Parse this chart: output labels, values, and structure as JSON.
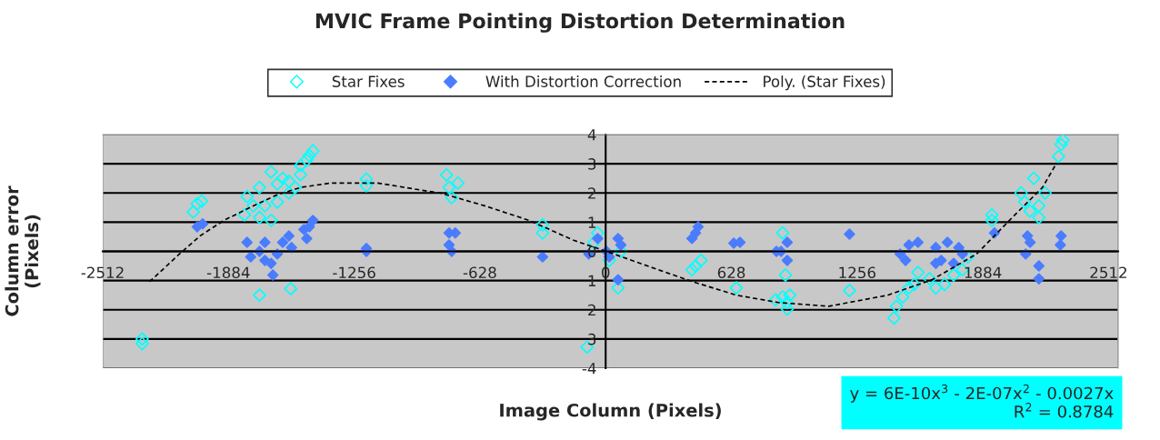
{
  "chart_data": {
    "type": "scatter",
    "title": "MVIC Frame Pointing Distortion Determination",
    "xlabel": "Image Column (Pixels)",
    "ylabel": "Column error\n(Pixels)",
    "xlim": [
      -2512,
      2560
    ],
    "ylim": [
      -4,
      4
    ],
    "xticks": [
      -2512,
      -1884,
      -1256,
      -628,
      0,
      628,
      1256,
      1884,
      2512
    ],
    "yticks": [
      {
        "value": -4,
        "label": "-4"
      },
      {
        "value": -3,
        "label": "3"
      },
      {
        "value": -2,
        "label": "2"
      },
      {
        "value": -1,
        "label": "1"
      },
      0,
      1,
      2,
      3,
      4
    ],
    "grid": "y",
    "legend": "top",
    "marker": "diamond",
    "series": [
      {
        "name": "Star Fixes",
        "color": "#00ffff",
        "x": [
          -2315,
          -2315,
          -2040,
          -2060,
          -2018,
          -1791,
          -1760,
          -1729,
          -1671,
          -1671,
          -1640,
          -1613,
          -1582,
          -1702,
          -1640,
          -1582,
          -1551,
          -1804,
          -1729,
          -1524,
          -1493,
          -1462,
          -1480,
          -1524,
          -1195,
          -1195,
          -1729,
          -1573,
          -795,
          -738,
          -782,
          -769,
          -315,
          -315,
          -40,
          -58,
          18,
          76,
          62,
          -93,
          449,
          476,
          431,
          653,
          849,
          884,
          898,
          907,
          884,
          920,
          907,
          1218,
          1440,
          1453,
          1484,
          1515,
          1560,
          1542,
          1618,
          1649,
          1693,
          1738,
          1782,
          1809,
          1929,
          1929,
          2075,
          2138,
          2093,
          2164,
          2195,
          2164,
          2120,
          2262,
          2275,
          2284
        ],
        "values": [
          -3.16,
          -3.0,
          1.63,
          1.35,
          1.72,
          1.88,
          1.56,
          2.19,
          2.72,
          1.06,
          2.31,
          2.5,
          2.4,
          1.56,
          1.69,
          2.0,
          2.19,
          1.25,
          1.16,
          2.94,
          3.13,
          3.44,
          3.28,
          2.63,
          2.47,
          2.25,
          -1.5,
          -1.28,
          2.62,
          2.34,
          2.19,
          1.84,
          0.91,
          0.63,
          0.63,
          0.31,
          -0.31,
          0.0,
          -1.25,
          -3.28,
          -0.5,
          -0.31,
          -0.63,
          -1.25,
          -1.66,
          0.63,
          -0.81,
          -1.75,
          -1.56,
          -1.5,
          -1.97,
          -1.34,
          -2.28,
          -1.88,
          -1.56,
          -1.25,
          -0.72,
          -1.13,
          -0.94,
          -1.25,
          -1.13,
          -0.81,
          -0.63,
          -0.19,
          1.25,
          1.06,
          2.0,
          2.5,
          1.69,
          1.56,
          2.0,
          1.16,
          1.38,
          3.25,
          3.66,
          3.81
        ]
      },
      {
        "name": "With Distortion Correction",
        "color": "#4a7cff",
        "x": [
          -2040,
          -2013,
          -1791,
          -1773,
          -1729,
          -1702,
          -1671,
          -1662,
          -1613,
          -1569,
          -1640,
          -1702,
          -1582,
          -1507,
          -1493,
          -1462,
          -1480,
          -1195,
          -1195,
          -782,
          -751,
          -769,
          -782,
          -315,
          -84,
          -40,
          4,
          62,
          76,
          18,
          62,
          449,
          462,
          431,
          640,
          671,
          853,
          876,
          907,
          907,
          1218,
          1471,
          1515,
          1560,
          1498,
          1649,
          1707,
          1764,
          1676,
          1738,
          1649,
          1782,
          1942,
          2107,
          2120,
          2098,
          2164,
          2164,
          2275,
          2271
        ],
        "values": [
          0.84,
          0.94,
          0.31,
          -0.19,
          0.0,
          0.31,
          -0.41,
          -0.81,
          0.31,
          0.13,
          -0.09,
          -0.31,
          0.53,
          0.75,
          0.44,
          1.06,
          0.84,
          0.0,
          0.1,
          0.63,
          0.63,
          0.0,
          0.22,
          -0.19,
          -0.09,
          0.44,
          0.0,
          0.44,
          0.22,
          -0.19,
          -0.97,
          0.63,
          0.84,
          0.44,
          0.28,
          0.31,
          0.0,
          0.0,
          0.31,
          -0.31,
          0.59,
          -0.09,
          0.22,
          0.31,
          -0.31,
          0.13,
          0.31,
          0.13,
          -0.31,
          -0.41,
          -0.41,
          -0.09,
          0.63,
          0.53,
          0.31,
          -0.09,
          -0.5,
          -0.94,
          0.53,
          0.22
        ]
      },
      {
        "name": "Poly. (Star Fixes)",
        "type": "line",
        "line_style": "dashed",
        "marker": "none",
        "color": "#000000",
        "x": [
          -2280,
          -2262,
          -2129,
          -2026,
          -1907,
          -1760,
          -1640,
          -1524,
          -1373,
          -1138,
          -915,
          -827,
          -604,
          -382,
          -160,
          4,
          209,
          431,
          653,
          862,
          1115,
          1409,
          1631,
          1853,
          2031,
          2182,
          2253
        ],
        "values": [
          -1.03,
          -0.94,
          -0.09,
          0.53,
          1.06,
          1.56,
          1.94,
          2.19,
          2.34,
          2.34,
          2.09,
          2.0,
          1.56,
          1.06,
          0.38,
          0.0,
          -0.5,
          -1.03,
          -1.5,
          -1.75,
          -1.88,
          -1.5,
          -0.97,
          -0.09,
          1.16,
          2.19,
          3.03
        ]
      }
    ],
    "annotations": [
      "y = 6E-10x$^{3}$ - 2E-07x$^{2}$ - 0.0027x\nR$^{2}$ = 0.8784"
    ]
  }
}
